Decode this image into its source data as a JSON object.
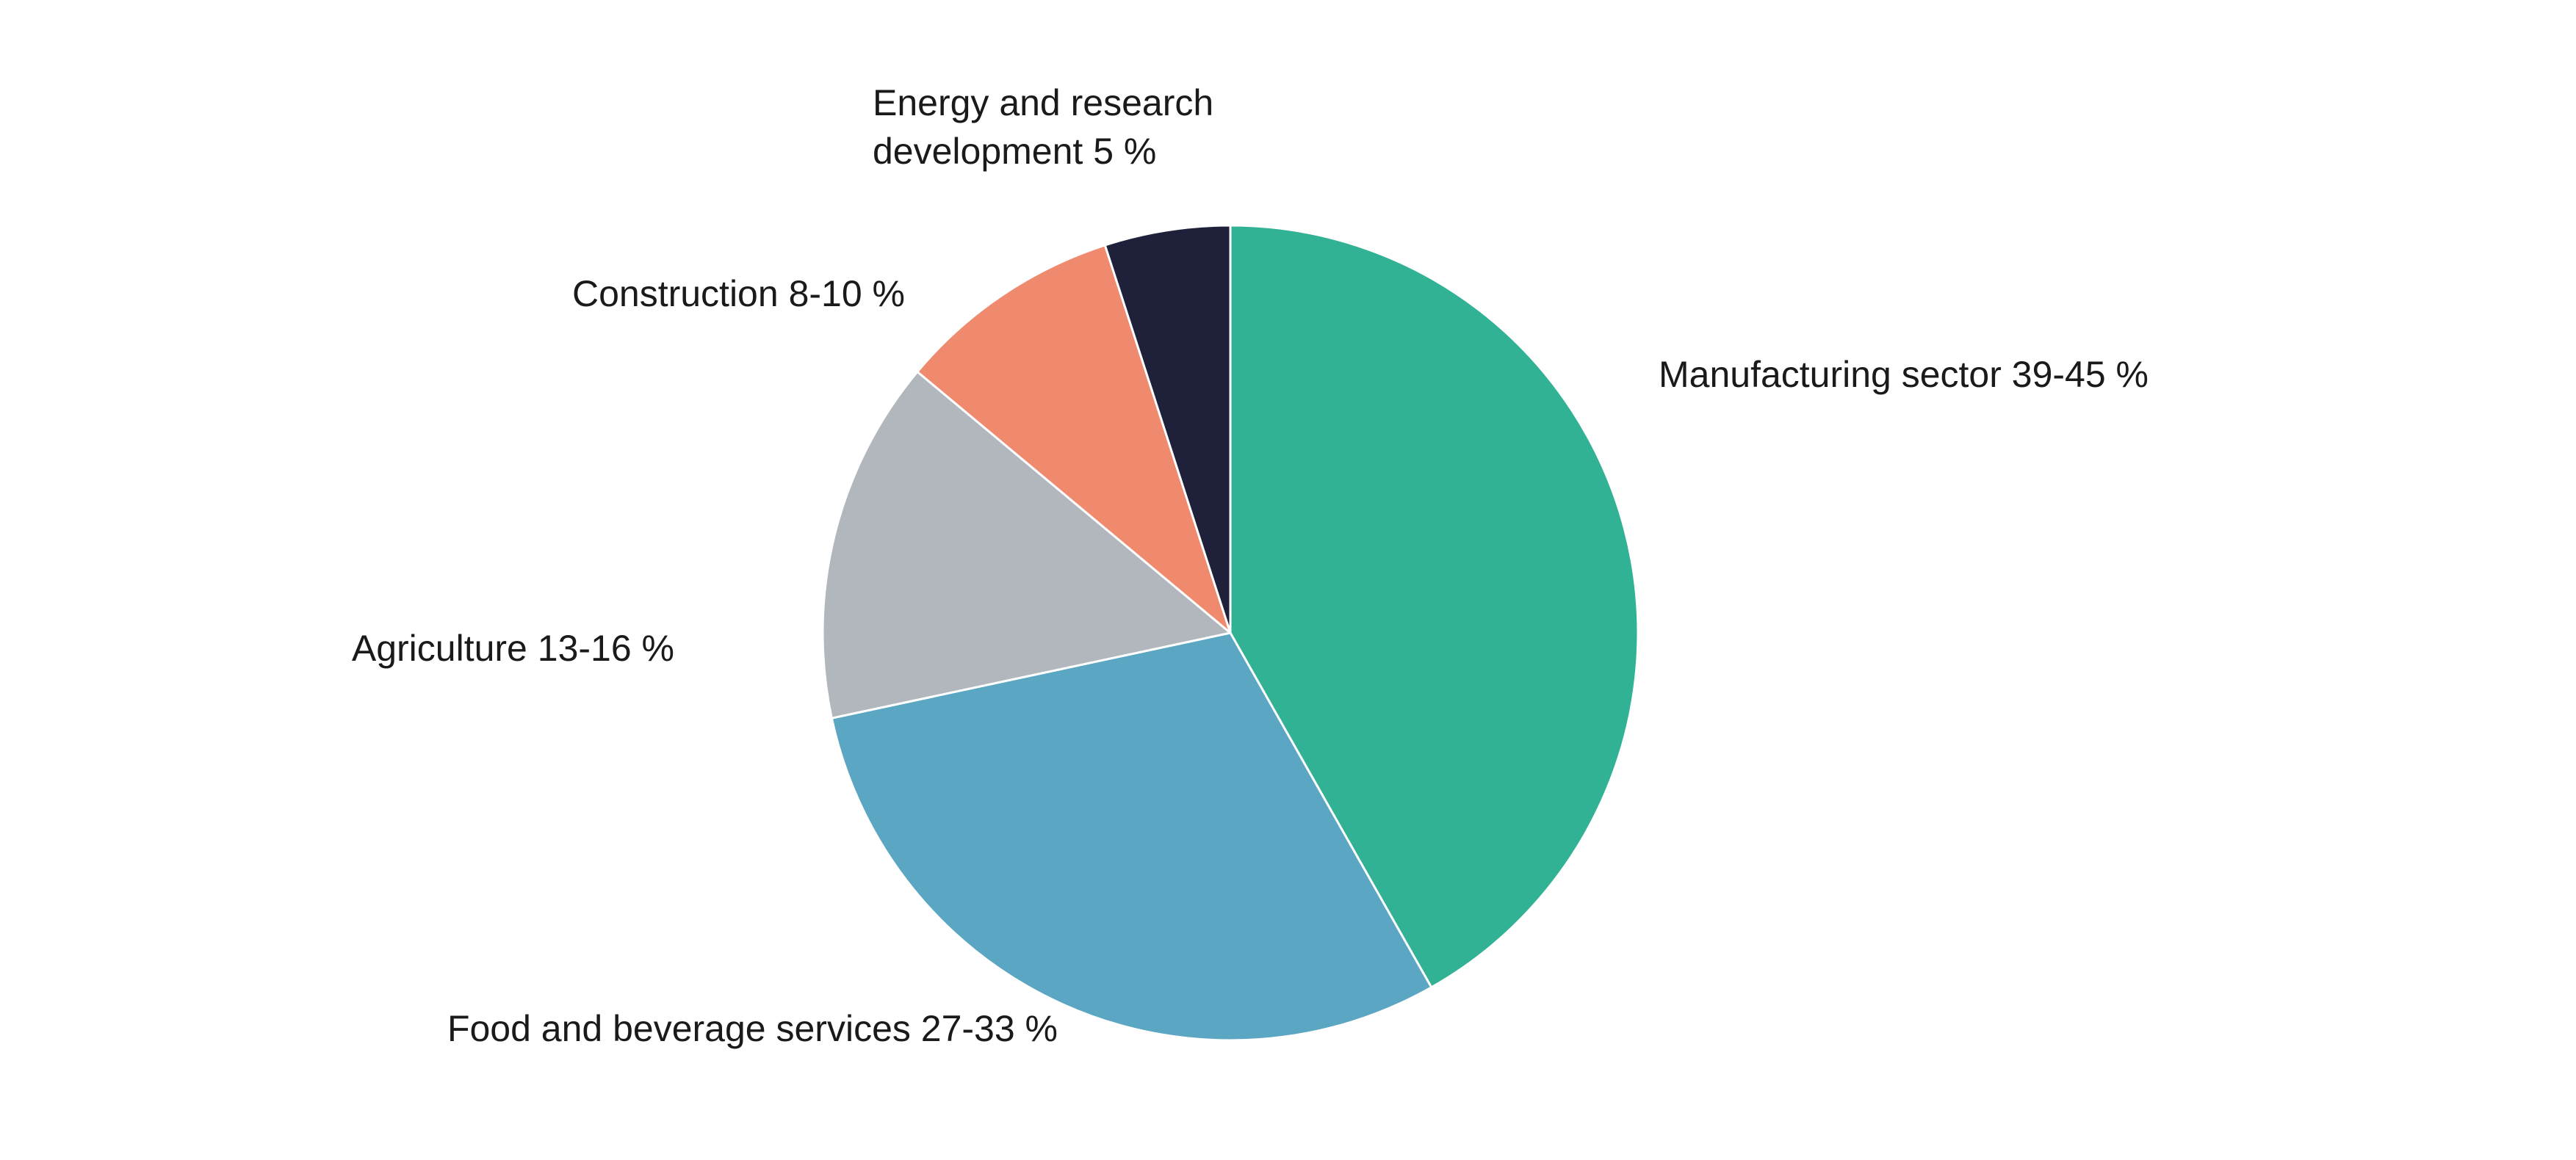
{
  "chart_data": {
    "type": "pie",
    "title": "",
    "start_angle_deg": 0,
    "direction": "clockwise",
    "slices": [
      {
        "label_lines": [
          "Manufacturing sector 39-45 %"
        ],
        "value": 42,
        "color": "#31b294"
      },
      {
        "label_lines": [
          "Food and beverage services 27-33 %"
        ],
        "value": 30,
        "color": "#5ba6c3"
      },
      {
        "label_lines": [
          "Agriculture 13-16 %"
        ],
        "value": 14.5,
        "color": "#b1b7bd"
      },
      {
        "label_lines": [
          "Construction 8-10 %"
        ],
        "value": 9,
        "color": "#f08a6f"
      },
      {
        "label_lines": [
          "Energy and research",
          "development 5 %"
        ],
        "value": 5,
        "color": "#1f213a"
      }
    ]
  }
}
